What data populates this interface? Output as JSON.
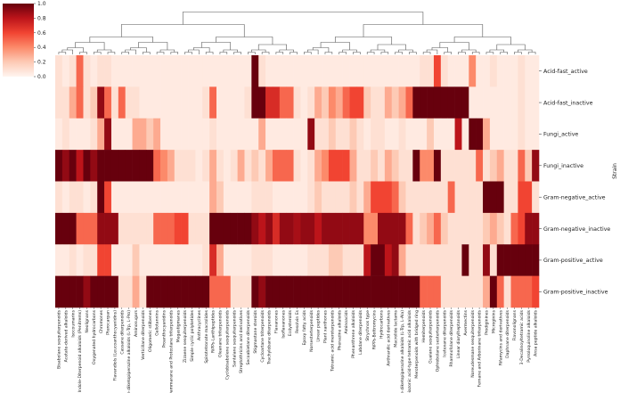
{
  "chart_data": {
    "type": "heatmap",
    "title": "",
    "ylabel": "Strain",
    "xlabel": "",
    "colormap": "Reds",
    "colorbar": {
      "min": 0.0,
      "max": 1.0,
      "ticks": [
        "0.0",
        "0.2",
        "0.4",
        "0.6",
        "0.8",
        "1.0"
      ]
    },
    "rows": [
      "Acid-fast_active",
      "Acid-fast_inactive",
      "Fungi_active",
      "Fungi_inactive",
      "Gram-negative_active",
      "Gram-negative_inactive",
      "Gram-positive_active",
      "Gram-positive_inactive"
    ],
    "columns": [
      "Bisabolane sesquiterpenoids",
      "Acetate-derived alkaloids",
      "Isocoumarins",
      "Indole-Diterpenoid alkaloids (Penitrems)",
      "Neolignans",
      "Oxygenated hydrocarbons",
      "Chromones",
      "Pterocarpan",
      "Flavandiols (Leucoanthocyanidins)",
      "Cassane diterpenoids",
      "Indole diketopiperazine alkaloids (L-Trp, L-Pro)",
      "Aminosugars",
      "Verticillane diterpenoids",
      "Oligomeric stilbenes",
      "Gallotannins",
      "Proanthocyanidins",
      "Dammarane and Protostane triterpenoids",
      "Megastigmanes",
      "Zizaene sesquiterpenoids",
      "Simple cyclic polyketides",
      "Anthracyclines",
      "Spirotetronate macrolides",
      "RiPPs-Lanthipeptides",
      "Oleanane triterpenoids",
      "Cyclobisabolene sesquiterpenoids",
      "Santalane sesquiterpenoids",
      "Streptothricins and derivatives",
      "Secoabietane diterpenoids",
      "Stigmastane steroids",
      "Cycloartane triterpenoids",
      "Trachylobane diterpenoids",
      "Flavanones",
      "Isoflavanones",
      "Ecdysteroids",
      "Resolvin Es",
      "Epoxy fatty acids",
      "Norsesterterpenoids",
      "Linear peptides",
      "Plant xanthones",
      "Tetramic acid meroterpenoids",
      "Phenazine alkaloids",
      "Aminoacids",
      "Phenanthrene alkaloids",
      "Labdane diterpenoids",
      "Strychnos type",
      "RiPPs-Bottromycins",
      "Hydrocarbons",
      "Anthranilic acid derivatives",
      "Macrolide lactams",
      "Indole diketopiperazine alkaloids (L-Trp, L-Ala)",
      "Cyclopiazonic acid-type tetramic acid alkaloids",
      "Meroterpenoids with bridged ring",
      "Hemiterpenoids",
      "Guaiane sesquiterpenoids",
      "Ophiobolane sesterterpenoids",
      "Icetexane diterpenoids",
      "Rhamnofolane diterpenoids",
      "Linear diarylheptanoids",
      "Avermectins",
      "Noreudesmane sesquiterpenoids",
      "Fernane and Arborinane triterpenoids",
      "Prodiginines",
      "Microginins",
      "Rifamycins and derivatives",
      "Daphnane diterpenoids",
      "Flavonolignans",
      "3-Decalinoyltetramic acids",
      "Pyrroloquinoline alkaloids",
      "Ansa peptide alkaloids"
    ],
    "values": [
      [
        0.1,
        0.05,
        0.1,
        0.5,
        0.1,
        0.05,
        0.1,
        0.1,
        0.05,
        0.05,
        0.05,
        0.05,
        0.05,
        0.05,
        0.05,
        0.05,
        0.05,
        0.05,
        0.05,
        0.05,
        0.05,
        0.05,
        0.05,
        0.05,
        0.05,
        0.05,
        0.05,
        0.05,
        1.0,
        0.1,
        0.05,
        0.05,
        0.05,
        0.05,
        0.05,
        0.05,
        0.05,
        0.05,
        0.05,
        0.05,
        0.05,
        0.05,
        0.05,
        0.05,
        0.05,
        0.05,
        0.05,
        0.05,
        0.05,
        0.05,
        0.05,
        0.05,
        0.1,
        0.1,
        0.6,
        0.1,
        0.05,
        0.05,
        0.05,
        0.4,
        0.05,
        0.05,
        0.1,
        0.05,
        0.05,
        0.05,
        0.1,
        0.05,
        0.05
      ],
      [
        0.1,
        0.1,
        0.3,
        0.5,
        0.1,
        0.2,
        0.9,
        0.5,
        0.1,
        0.5,
        0.1,
        0.1,
        0.05,
        0.05,
        0.05,
        0.05,
        0.05,
        0.05,
        0.05,
        0.05,
        0.05,
        0.1,
        0.5,
        0.05,
        0.05,
        0.05,
        0.05,
        0.1,
        1.0,
        1.0,
        0.7,
        0.7,
        0.5,
        0.5,
        0.1,
        0.05,
        0.1,
        0.3,
        0.2,
        0.4,
        0.3,
        0.5,
        0.6,
        0.6,
        0.2,
        0.1,
        0.1,
        0.3,
        0.2,
        0.3,
        0.5,
        1.0,
        1.0,
        1.0,
        1.0,
        1.0,
        1.0,
        1.0,
        1.0,
        0.05,
        0.05,
        0.05,
        0.05,
        0.05,
        0.05,
        0.05,
        0.1,
        0.05,
        0.05
      ],
      [
        0.05,
        0.1,
        0.05,
        0.05,
        0.05,
        0.1,
        0.3,
        0.9,
        0.05,
        0.05,
        0.05,
        0.3,
        0.3,
        0.2,
        0.3,
        0.05,
        0.05,
        0.05,
        0.05,
        0.05,
        0.05,
        0.05,
        0.1,
        0.05,
        0.05,
        0.05,
        0.05,
        0.05,
        0.05,
        0.3,
        0.05,
        0.05,
        0.05,
        0.05,
        0.05,
        0.05,
        0.9,
        0.1,
        0.1,
        0.2,
        0.1,
        0.1,
        0.2,
        0.1,
        0.05,
        0.1,
        0.1,
        0.05,
        0.05,
        0.1,
        0.05,
        0.05,
        0.05,
        0.2,
        0.05,
        0.05,
        0.05,
        0.8,
        0.05,
        1.0,
        1.0,
        0.3,
        0.05,
        0.05,
        0.05,
        0.05,
        0.1,
        0.05,
        0.05
      ],
      [
        1.0,
        0.9,
        1.0,
        0.8,
        1.0,
        0.9,
        1.0,
        1.0,
        1.0,
        1.0,
        1.0,
        1.0,
        1.0,
        1.0,
        0.5,
        0.4,
        0.3,
        0.1,
        0.1,
        0.1,
        0.05,
        0.1,
        0.3,
        0.1,
        0.05,
        0.1,
        0.3,
        0.1,
        0.2,
        0.1,
        0.3,
        0.5,
        0.5,
        0.5,
        0.1,
        0.05,
        0.1,
        0.3,
        0.4,
        0.6,
        0.6,
        0.6,
        0.3,
        0.1,
        0.1,
        0.2,
        0.1,
        0.3,
        0.2,
        0.1,
        0.1,
        1.0,
        0.4,
        0.4,
        1.0,
        0.1,
        0.1,
        0.1,
        0.1,
        0.1,
        0.5,
        0.1,
        0.2,
        0.3,
        0.1,
        0.1,
        0.5,
        0.2,
        0.9
      ],
      [
        0.1,
        0.05,
        0.1,
        0.1,
        0.05,
        0.1,
        1.0,
        0.6,
        0.05,
        0.05,
        0.05,
        0.05,
        0.05,
        0.05,
        0.05,
        0.05,
        0.05,
        0.05,
        0.05,
        0.05,
        0.05,
        0.05,
        0.3,
        0.2,
        0.05,
        0.05,
        0.05,
        0.05,
        0.1,
        0.1,
        0.1,
        0.05,
        0.05,
        0.05,
        0.05,
        0.05,
        0.1,
        0.2,
        0.1,
        0.1,
        0.1,
        0.1,
        0.2,
        0.1,
        0.3,
        0.6,
        0.6,
        0.6,
        0.5,
        0.2,
        0.1,
        0.1,
        0.1,
        0.1,
        0.1,
        0.1,
        0.5,
        0.1,
        0.1,
        0.1,
        0.1,
        1.0,
        1.0,
        1.0,
        0.1,
        0.1,
        0.6,
        0.6,
        0.1
      ],
      [
        1.0,
        1.0,
        1.0,
        0.5,
        0.5,
        0.5,
        0.9,
        0.9,
        0.9,
        0.1,
        0.1,
        0.1,
        0.1,
        0.1,
        0.5,
        0.5,
        0.5,
        0.6,
        0.6,
        0.1,
        0.1,
        0.1,
        1.0,
        1.0,
        1.0,
        1.0,
        1.0,
        1.0,
        0.9,
        0.8,
        0.9,
        0.7,
        0.9,
        0.9,
        0.85,
        0.9,
        0.9,
        0.8,
        0.9,
        0.9,
        0.9,
        0.9,
        0.9,
        0.9,
        0.4,
        0.4,
        0.9,
        0.9,
        0.9,
        0.9,
        0.5,
        0.1,
        0.2,
        0.3,
        0.5,
        0.2,
        0.1,
        0.1,
        0.1,
        0.1,
        0.1,
        0.2,
        0.3,
        0.2,
        0.1,
        0.5,
        0.6,
        0.9,
        0.9
      ],
      [
        0.05,
        0.05,
        0.1,
        0.05,
        0.1,
        0.1,
        0.6,
        0.6,
        0.05,
        0.05,
        0.05,
        0.2,
        0.05,
        0.05,
        0.05,
        0.05,
        0.05,
        0.05,
        0.05,
        0.05,
        0.05,
        0.1,
        0.7,
        0.3,
        0.05,
        0.05,
        0.05,
        0.05,
        0.1,
        0.1,
        0.1,
        0.05,
        0.05,
        0.05,
        0.05,
        0.05,
        0.1,
        0.1,
        0.1,
        0.2,
        0.2,
        0.1,
        0.1,
        0.1,
        0.8,
        1.0,
        1.0,
        0.8,
        0.9,
        0.3,
        0.1,
        0.1,
        0.1,
        0.1,
        0.1,
        0.1,
        0.1,
        0.1,
        1.0,
        0.1,
        0.1,
        0.9,
        0.1,
        1.0,
        1.0,
        1.0,
        1.0,
        1.0,
        1.0
      ],
      [
        1.0,
        1.0,
        1.0,
        1.0,
        0.9,
        1.0,
        1.0,
        1.0,
        1.0,
        0.1,
        0.1,
        0.3,
        0.1,
        1.0,
        1.0,
        1.0,
        1.0,
        1.0,
        1.0,
        1.0,
        1.0,
        1.0,
        0.5,
        0.5,
        0.5,
        0.1,
        0.1,
        0.1,
        1.0,
        0.9,
        1.0,
        1.0,
        1.0,
        1.0,
        1.0,
        1.0,
        1.0,
        1.0,
        1.0,
        1.0,
        1.0,
        1.0,
        1.0,
        1.0,
        1.0,
        1.0,
        1.0,
        1.0,
        1.0,
        1.0,
        1.0,
        1.0,
        0.5,
        0.5,
        0.5,
        0.1,
        0.1,
        0.1,
        0.1,
        0.1,
        0.1,
        0.3,
        1.0,
        0.5,
        0.1,
        0.5,
        0.5,
        0.5,
        0.6
      ]
    ]
  }
}
